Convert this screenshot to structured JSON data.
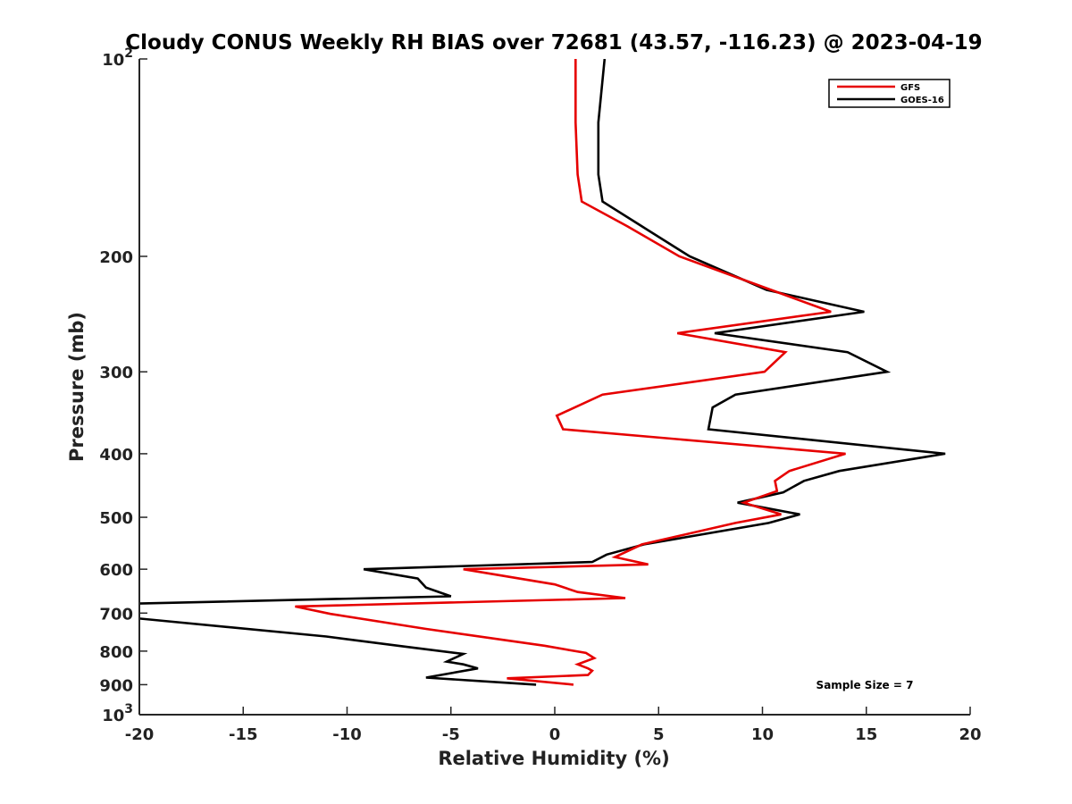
{
  "chart_data": {
    "type": "line",
    "title": "Cloudy CONUS Weekly RH BIAS over 72681 (43.57, -116.23) @ 2023-04-19",
    "xlabel": "Relative Humidity (%)",
    "ylabel": "Pressure (mb)",
    "xlim": [
      -20,
      20
    ],
    "ylim": [
      100,
      1000
    ],
    "y_scale": "log",
    "y_reversed": true,
    "grid": false,
    "legend_position": "top-right",
    "annotation": "Sample Size = 7",
    "x_ticks": [
      {
        "value": -20,
        "label": "-20"
      },
      {
        "value": -15,
        "label": "-15"
      },
      {
        "value": -10,
        "label": "-10"
      },
      {
        "value": -5,
        "label": "-5"
      },
      {
        "value": 0,
        "label": "0"
      },
      {
        "value": 5,
        "label": "5"
      },
      {
        "value": 10,
        "label": "10"
      },
      {
        "value": 15,
        "label": "15"
      },
      {
        "value": 20,
        "label": "20"
      }
    ],
    "y_ticks": [
      {
        "value": 100,
        "base": "10",
        "exp": "2"
      },
      {
        "value": 200,
        "label": "200"
      },
      {
        "value": 300,
        "label": "300"
      },
      {
        "value": 400,
        "label": "400"
      },
      {
        "value": 500,
        "label": "500"
      },
      {
        "value": 600,
        "label": "600"
      },
      {
        "value": 700,
        "label": "700"
      },
      {
        "value": 800,
        "label": "800"
      },
      {
        "value": 900,
        "label": "900"
      },
      {
        "value": 1000,
        "base": "10",
        "exp": "3"
      }
    ],
    "series": [
      {
        "name": "GFS",
        "color": "#e60000",
        "points": [
          [
            1.0,
            100
          ],
          [
            1.0,
            125
          ],
          [
            1.1,
            150
          ],
          [
            1.3,
            165
          ],
          [
            3.5,
            180
          ],
          [
            6.0,
            200
          ],
          [
            13.3,
            243
          ],
          [
            5.9,
            262
          ],
          [
            11.1,
            280
          ],
          [
            10.1,
            300
          ],
          [
            2.3,
            325
          ],
          [
            0.1,
            350
          ],
          [
            0.4,
            367
          ],
          [
            14.0,
            400
          ],
          [
            11.3,
            425
          ],
          [
            10.6,
            440
          ],
          [
            10.7,
            456
          ],
          [
            9.1,
            475
          ],
          [
            10.9,
            495
          ],
          [
            8.7,
            510
          ],
          [
            4.2,
            550
          ],
          [
            2.9,
            575
          ],
          [
            4.5,
            590
          ],
          [
            -4.4,
            600
          ],
          [
            0.0,
            633
          ],
          [
            1.1,
            650
          ],
          [
            3.4,
            664
          ],
          [
            -12.5,
            684
          ],
          [
            -10.8,
            702
          ],
          [
            -6.2,
            740
          ],
          [
            -0.5,
            785
          ],
          [
            1.5,
            805
          ],
          [
            1.9,
            820
          ],
          [
            1.1,
            838
          ],
          [
            1.6,
            850
          ],
          [
            1.8,
            857
          ],
          [
            1.6,
            870
          ],
          [
            -2.3,
            880
          ],
          [
            0.9,
            900
          ]
        ]
      },
      {
        "name": "GOES-16",
        "color": "#000000",
        "points": [
          [
            2.4,
            100
          ],
          [
            2.1,
            125
          ],
          [
            2.1,
            150
          ],
          [
            2.3,
            165
          ],
          [
            4.2,
            180
          ],
          [
            6.5,
            200
          ],
          [
            10.2,
            225
          ],
          [
            14.9,
            243
          ],
          [
            7.7,
            262
          ],
          [
            14.1,
            280
          ],
          [
            16.0,
            300
          ],
          [
            8.7,
            325
          ],
          [
            7.6,
            340
          ],
          [
            7.4,
            367
          ],
          [
            18.8,
            400
          ],
          [
            13.7,
            425
          ],
          [
            12.0,
            440
          ],
          [
            11.0,
            458
          ],
          [
            8.8,
            475
          ],
          [
            11.8,
            495
          ],
          [
            10.3,
            510
          ],
          [
            4.3,
            550
          ],
          [
            2.5,
            570
          ],
          [
            1.8,
            585
          ],
          [
            -9.2,
            600
          ],
          [
            -6.6,
            620
          ],
          [
            -6.2,
            640
          ],
          [
            -5.0,
            660
          ],
          [
            -20.2,
            677
          ],
          [
            -20.3,
            712
          ],
          [
            -11.0,
            760
          ],
          [
            -7.3,
            787
          ],
          [
            -4.4,
            808
          ],
          [
            -5.2,
            830
          ],
          [
            -4.4,
            838
          ],
          [
            -3.7,
            850
          ],
          [
            -6.2,
            878
          ],
          [
            -0.9,
            900
          ]
        ]
      }
    ]
  }
}
